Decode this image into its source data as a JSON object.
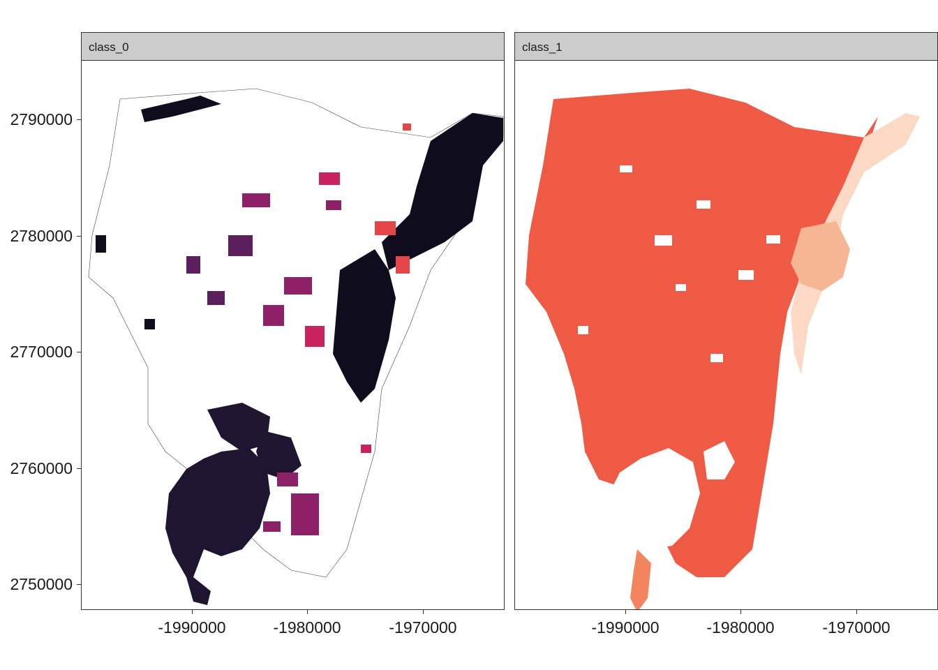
{
  "chart_data": {
    "type": "heatmap",
    "title": "",
    "xlabel": "",
    "ylabel": "",
    "panels": [
      {
        "name": "class_0",
        "colors": [
          "#1f1530",
          "#0f0c1e",
          "#5a1f5c",
          "#8e2067",
          "#c8235f",
          "#e44648",
          "#f26c4b"
        ],
        "background": "#ffffff"
      },
      {
        "name": "class_1",
        "colors": [
          "#ef5a45",
          "#f2845e",
          "#f6b593",
          "#fbd9c4"
        ],
        "background": "#ffffff"
      }
    ],
    "x_ticks": [
      "-1990000",
      "-1980000",
      "-1970000"
    ],
    "y_ticks": [
      "2790000",
      "2780000",
      "2770000",
      "2760000",
      "2750000"
    ],
    "xlim": [
      -2000000,
      -1963000
    ],
    "ylim": [
      2747000,
      2795000
    ],
    "grid": false,
    "legend": "none"
  }
}
